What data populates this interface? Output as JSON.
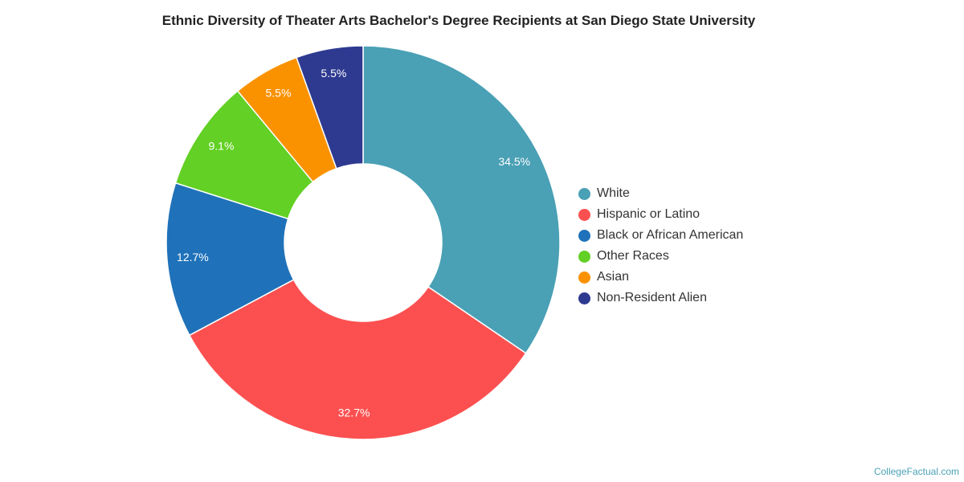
{
  "chart_data": {
    "type": "pie",
    "title": "Ethnic Diversity of Theater Arts Bachelor's Degree Recipients at San Diego State University",
    "categories": [
      "White",
      "Hispanic or Latino",
      "Black or African American",
      "Other Races",
      "Asian",
      "Non-Resident Alien"
    ],
    "values": [
      34.5,
      32.7,
      12.7,
      9.1,
      5.5,
      5.5
    ],
    "labels": [
      "34.5%",
      "32.7%",
      "12.7%",
      "9.1%",
      "5.5%",
      "5.5%"
    ],
    "colors": [
      "#4aa0b5",
      "#fc5050",
      "#1f72b9",
      "#62d024",
      "#fa9200",
      "#2e3a90"
    ],
    "legend_position": "right"
  },
  "credit": "CollegeFactual.com"
}
